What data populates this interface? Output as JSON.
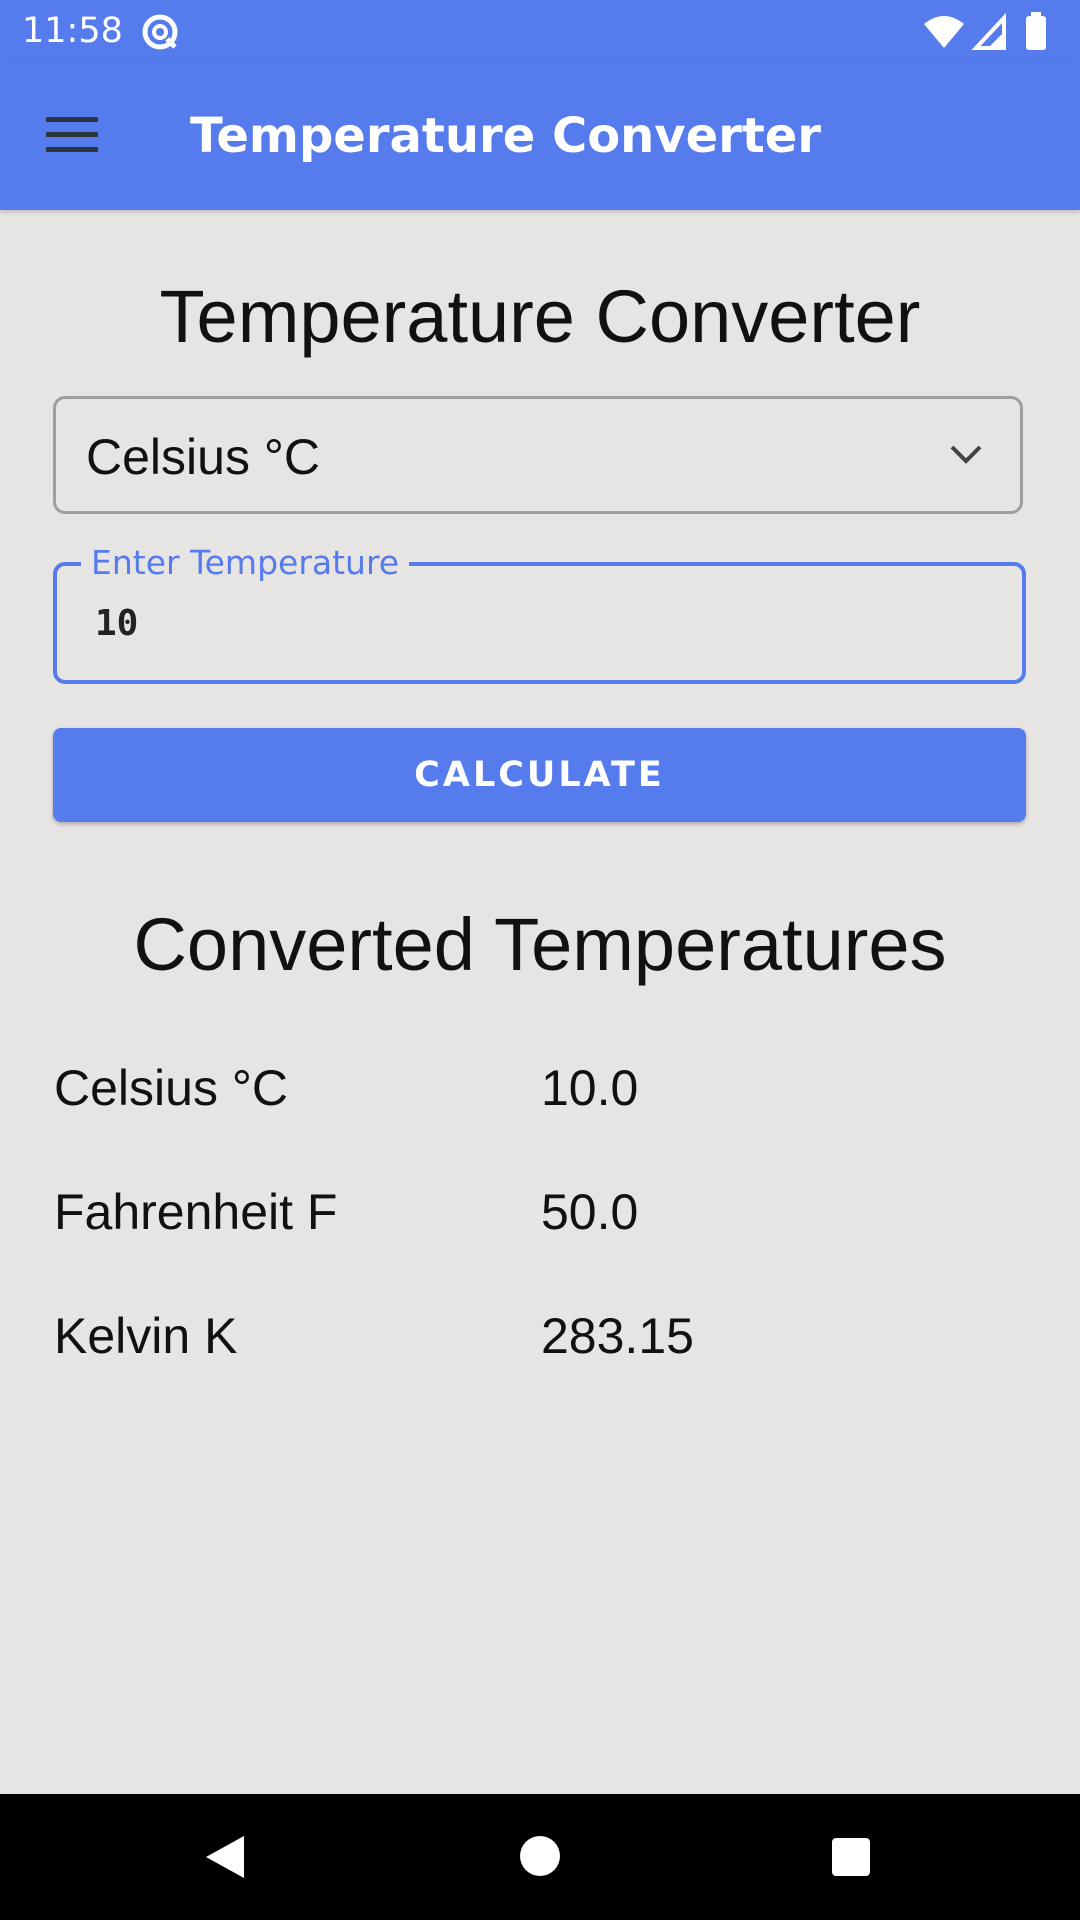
{
  "status_bar": {
    "time": "11:58",
    "app_icon": "at-sign-icon",
    "icons": [
      "wifi-icon",
      "signal-icon",
      "battery-icon"
    ]
  },
  "app_bar": {
    "title": "Temperature Converter",
    "menu_icon": "hamburger-menu-icon"
  },
  "main": {
    "title": "Temperature Converter",
    "unit_select": {
      "value": "Celsius °C",
      "icon": "chevron-down-icon"
    },
    "temperature_field": {
      "label": "Enter Temperature",
      "value": "10"
    },
    "calculate_button": "CALCULATE",
    "results_title": "Converted Temperatures",
    "results": [
      {
        "label": "Celsius °C",
        "value": "10.0"
      },
      {
        "label": "Fahrenheit F",
        "value": "50.0"
      },
      {
        "label": "Kelvin K",
        "value": "283.15"
      }
    ]
  },
  "nav_bar": {
    "icons": [
      "back-icon",
      "home-icon",
      "recents-icon"
    ]
  },
  "colors": {
    "primary": "#567bed",
    "background": "#e7e4e4",
    "text": "#111111",
    "nav_bar": "#000000"
  }
}
